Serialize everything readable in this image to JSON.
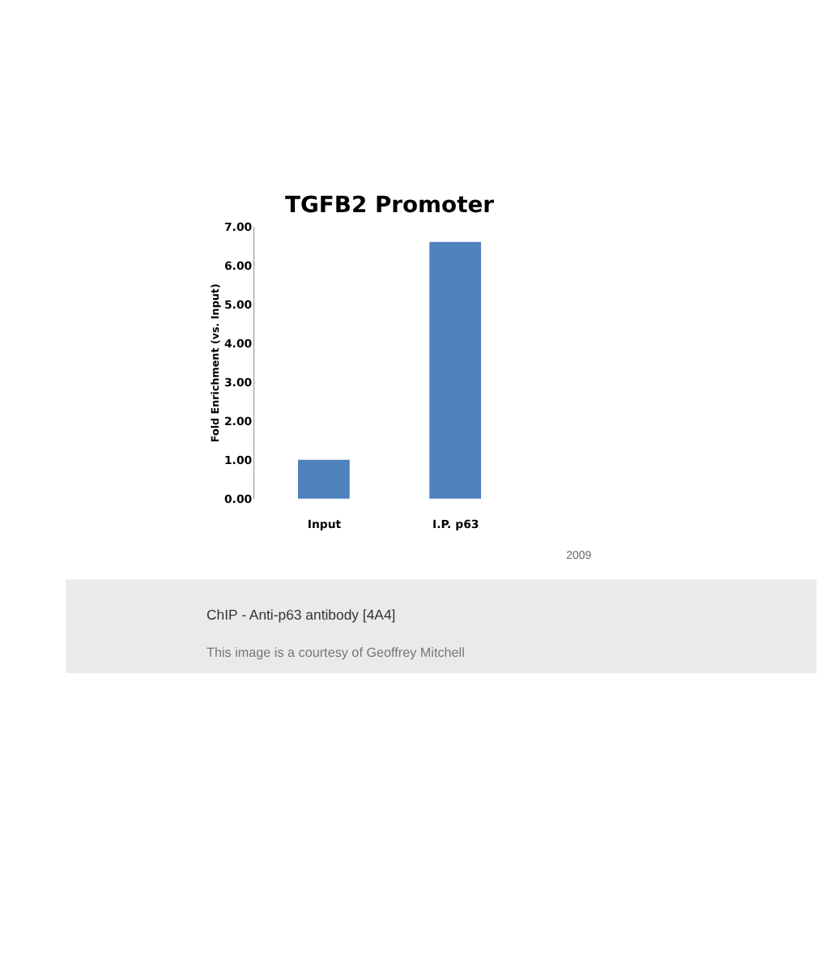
{
  "chart_data": {
    "type": "bar",
    "title": "TGFB2 Promoter",
    "ylabel": "Fold Enrichment (vs. Input)",
    "categories": [
      "Input",
      "I.P. p63"
    ],
    "values": [
      1.0,
      6.6
    ],
    "color": "#4f81bd",
    "ylim": [
      0,
      7
    ],
    "yticks": [
      {
        "value": 0,
        "label": "0.00"
      },
      {
        "value": 1,
        "label": "1.00"
      },
      {
        "value": 2,
        "label": "2.00"
      },
      {
        "value": 3,
        "label": "3.00"
      },
      {
        "value": 4,
        "label": "4.00"
      },
      {
        "value": 5,
        "label": "5.00"
      },
      {
        "value": 6,
        "label": "6.00"
      },
      {
        "value": 7,
        "label": "7.00"
      }
    ],
    "grid": false,
    "annotations": [
      "2009",
      "ChIP - Anti-p63 antibody [4A4]",
      "This image is a courtesy of Geoffrey Mitchell"
    ]
  }
}
